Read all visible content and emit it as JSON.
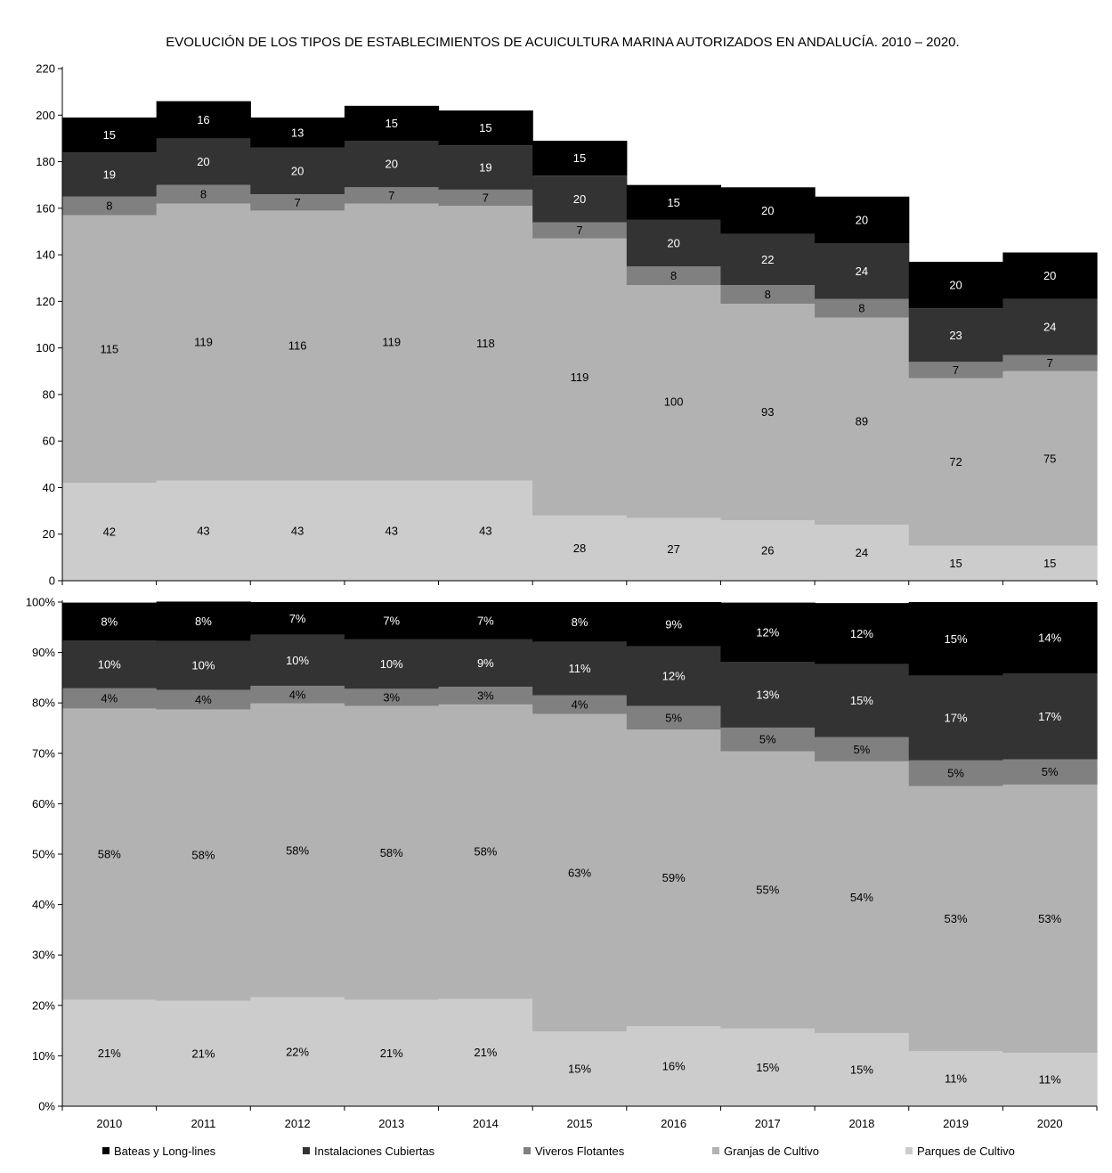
{
  "chart_data": [
    {
      "type": "bar",
      "stacked": true,
      "title": "EVOLUCIÓN DE LOS TIPOS DE ESTABLECIMIENTOS DE ACUICULTURA MARINA AUTORIZADOS EN ANDALUCÍA. 2010 – 2020.",
      "categories": [
        "2010",
        "2011",
        "2012",
        "2013",
        "2014",
        "2015",
        "2016",
        "2017",
        "2018",
        "2019",
        "2020"
      ],
      "ylim": [
        0,
        220
      ],
      "yticks": [
        "0",
        "20",
        "40",
        "60",
        "80",
        "100",
        "120",
        "140",
        "160",
        "180",
        "200",
        "220"
      ],
      "series": [
        {
          "name": "Parques de Cultivo",
          "color": "#cccccc",
          "label_color": "#000000",
          "values": [
            42,
            43,
            43,
            43,
            43,
            28,
            27,
            26,
            24,
            15,
            15
          ],
          "labels": [
            "42",
            "43",
            "43",
            "43",
            "43",
            "28",
            "27",
            "26",
            "24",
            "15",
            "15"
          ]
        },
        {
          "name": "Granjas de Cultivo",
          "color": "#b2b2b2",
          "label_color": "#000000",
          "values": [
            115,
            119,
            116,
            119,
            118,
            119,
            100,
            93,
            89,
            72,
            75
          ],
          "labels": [
            "115",
            "119",
            "116",
            "119",
            "118",
            "119",
            "100",
            "93",
            "89",
            "72",
            "75"
          ]
        },
        {
          "name": "Viveros Flotantes",
          "color": "#808080",
          "label_color": "#000000",
          "values": [
            8,
            8,
            7,
            7,
            7,
            7,
            8,
            8,
            8,
            7,
            7
          ],
          "labels": [
            "8",
            "8",
            "7",
            "7",
            "7",
            "7",
            "8",
            "8",
            "8",
            "7",
            "7"
          ]
        },
        {
          "name": "Instalaciones Cubiertas",
          "color": "#333333",
          "label_color": "#ffffff",
          "values": [
            19,
            20,
            20,
            20,
            19,
            20,
            20,
            22,
            24,
            23,
            24
          ],
          "labels": [
            "19",
            "20",
            "20",
            "20",
            "19",
            "20",
            "20",
            "22",
            "24",
            "23",
            "24"
          ]
        },
        {
          "name": "Bateas y Long-lines",
          "color": "#000000",
          "label_color": "#ffffff",
          "values": [
            15,
            16,
            13,
            15,
            15,
            15,
            15,
            20,
            20,
            20,
            20
          ],
          "labels": [
            "15",
            "16",
            "13",
            "15",
            "15",
            "15",
            "15",
            "20",
            "20",
            "20",
            "20"
          ]
        }
      ]
    },
    {
      "type": "bar",
      "stacked": true,
      "percent": true,
      "categories": [
        "2010",
        "2011",
        "2012",
        "2013",
        "2014",
        "2015",
        "2016",
        "2017",
        "2018",
        "2019",
        "2020"
      ],
      "ylim": [
        0,
        100
      ],
      "yticks": [
        "0%",
        "10%",
        "20%",
        "30%",
        "40%",
        "50%",
        "60%",
        "70%",
        "80%",
        "90%",
        "100%"
      ],
      "series": [
        {
          "name": "Parques de Cultivo",
          "color": "#cccccc",
          "label_color": "#000000",
          "values": [
            21.1,
            20.9,
            21.6,
            21.1,
            21.3,
            14.8,
            15.9,
            15.4,
            14.5,
            10.9,
            10.6
          ],
          "labels": [
            "21%",
            "21%",
            "22%",
            "21%",
            "21%",
            "15%",
            "16%",
            "15%",
            "15%",
            "11%",
            "11%"
          ]
        },
        {
          "name": "Granjas de Cultivo",
          "color": "#b2b2b2",
          "label_color": "#000000",
          "values": [
            57.8,
            57.8,
            58.3,
            58.3,
            58.4,
            63.0,
            58.8,
            55.0,
            53.9,
            52.6,
            53.2
          ],
          "labels": [
            "58%",
            "58%",
            "58%",
            "58%",
            "58%",
            "63%",
            "59%",
            "55%",
            "54%",
            "53%",
            "53%"
          ]
        },
        {
          "name": "Viveros Flotantes",
          "color": "#808080",
          "label_color": "#000000",
          "values": [
            4.0,
            3.9,
            3.5,
            3.4,
            3.5,
            3.7,
            4.7,
            4.7,
            4.8,
            5.1,
            5.0
          ],
          "labels": [
            "4%",
            "4%",
            "4%",
            "3%",
            "3%",
            "4%",
            "5%",
            "5%",
            "5%",
            "5%",
            "5%"
          ]
        },
        {
          "name": "Instalaciones Cubiertas",
          "color": "#333333",
          "label_color": "#ffffff",
          "values": [
            9.5,
            9.7,
            10.1,
            9.8,
            9.4,
            10.6,
            11.8,
            13.0,
            14.5,
            16.8,
            17.0
          ],
          "labels": [
            "10%",
            "10%",
            "10%",
            "10%",
            "9%",
            "11%",
            "12%",
            "13%",
            "15%",
            "17%",
            "17%"
          ]
        },
        {
          "name": "Bateas y Long-lines",
          "color": "#000000",
          "label_color": "#ffffff",
          "values": [
            7.5,
            7.8,
            6.5,
            7.4,
            7.4,
            7.9,
            8.8,
            11.8,
            12.1,
            14.6,
            14.2
          ],
          "labels": [
            "8%",
            "8%",
            "7%",
            "7%",
            "7%",
            "8%",
            "9%",
            "12%",
            "12%",
            "15%",
            "14%"
          ]
        }
      ]
    }
  ],
  "legend": {
    "placement": "bottom",
    "items": [
      {
        "label": "Bateas y Long-lines",
        "color": "#000000"
      },
      {
        "label": "Instalaciones Cubiertas",
        "color": "#333333"
      },
      {
        "label": "Viveros Flotantes",
        "color": "#808080"
      },
      {
        "label": "Granjas de Cultivo",
        "color": "#b2b2b2"
      },
      {
        "label": "Parques de Cultivo",
        "color": "#cccccc"
      }
    ]
  }
}
